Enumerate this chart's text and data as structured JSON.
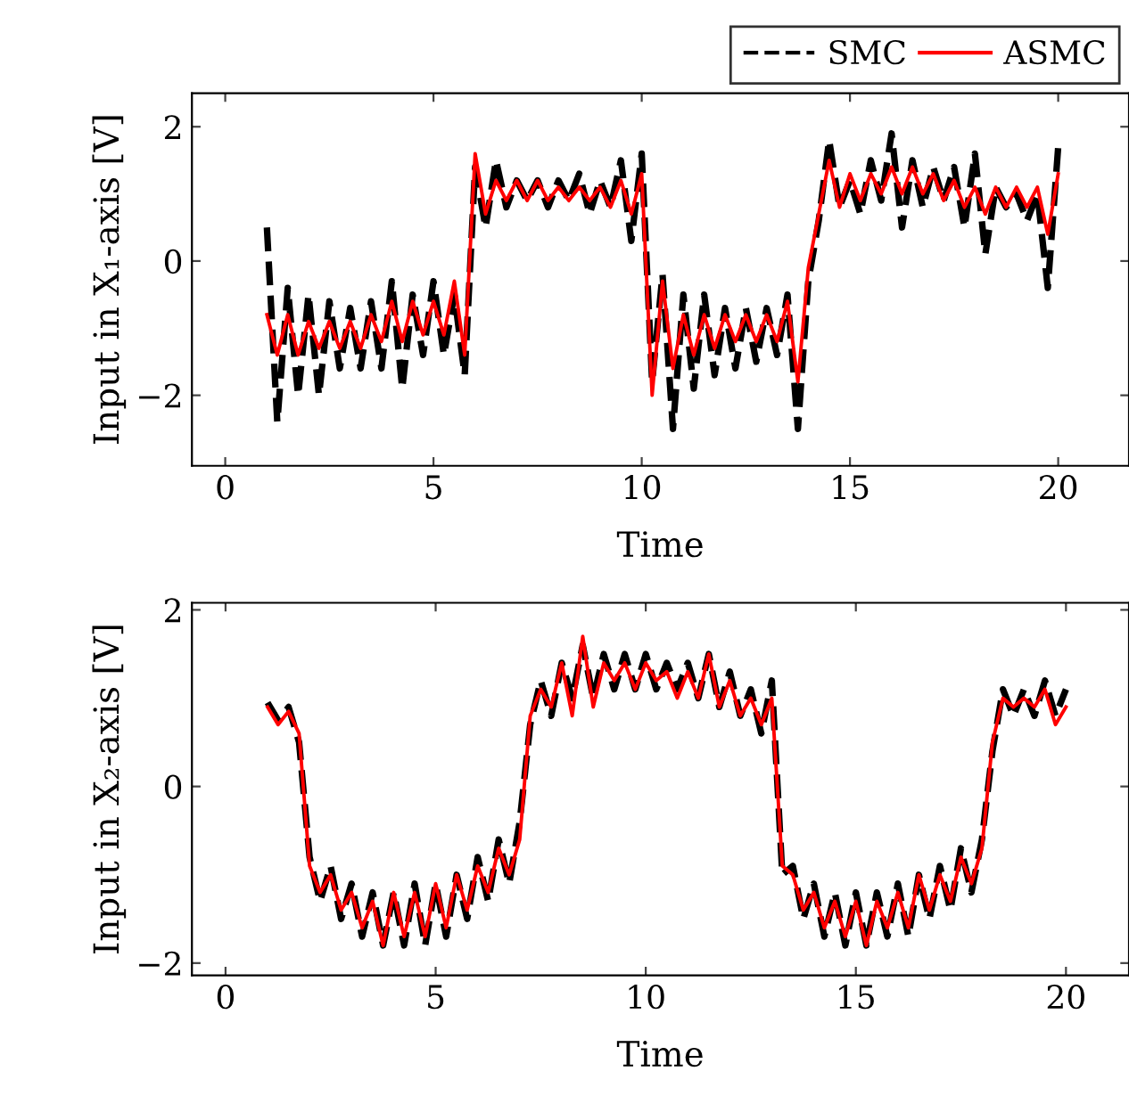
{
  "chart_data": [
    {
      "type": "line",
      "xlabel": "Time",
      "ylabel": "Input in X₁-axis [V]",
      "xlim": [
        -0.8,
        21.7
      ],
      "ylim": [
        -3.05,
        2.5
      ],
      "xticks": [
        0,
        5,
        10,
        15,
        20
      ],
      "yticks": [
        {
          "value": -2,
          "label": "−2"
        },
        0,
        2
      ],
      "legend": "top right",
      "grid": false,
      "x": [
        1.0,
        1.25,
        1.5,
        1.75,
        2.0,
        2.25,
        2.5,
        2.75,
        3.0,
        3.25,
        3.5,
        3.75,
        4.0,
        4.25,
        4.5,
        4.75,
        5.0,
        5.25,
        5.5,
        5.75,
        6.0,
        6.25,
        6.5,
        6.75,
        7.0,
        7.25,
        7.5,
        7.75,
        8.0,
        8.25,
        8.5,
        8.75,
        9.0,
        9.25,
        9.5,
        9.75,
        10.0,
        10.25,
        10.5,
        10.75,
        11.0,
        11.25,
        11.5,
        11.75,
        12.0,
        12.25,
        12.5,
        12.75,
        13.0,
        13.25,
        13.5,
        13.75,
        14.0,
        14.25,
        14.5,
        14.75,
        15.0,
        15.25,
        15.5,
        15.75,
        16.0,
        16.25,
        16.5,
        16.75,
        17.0,
        17.25,
        17.5,
        17.75,
        18.0,
        18.25,
        18.5,
        18.75,
        19.0,
        19.25,
        19.5,
        19.75,
        20.0
      ],
      "series": [
        {
          "name": "SMC",
          "color": "#000000",
          "line_style": "dashed",
          "values": [
            0.5,
            -2.4,
            -0.4,
            -2.0,
            -0.5,
            -2.0,
            -0.6,
            -1.6,
            -0.7,
            -1.6,
            -0.6,
            -1.6,
            -0.3,
            -1.9,
            -0.5,
            -1.4,
            -0.3,
            -1.4,
            -0.5,
            -1.7,
            1.4,
            0.5,
            1.5,
            0.8,
            1.2,
            0.9,
            1.2,
            0.8,
            1.2,
            0.9,
            1.3,
            0.7,
            1.2,
            0.8,
            1.5,
            0.3,
            1.6,
            -1.8,
            -0.2,
            -2.5,
            -0.5,
            -1.9,
            -0.5,
            -1.7,
            -0.7,
            -1.6,
            -0.7,
            -1.5,
            -0.7,
            -1.4,
            -0.5,
            -2.5,
            -0.3,
            0.6,
            1.8,
            0.8,
            1.2,
            0.7,
            1.5,
            0.9,
            1.9,
            0.5,
            1.5,
            0.8,
            1.4,
            0.9,
            1.4,
            0.5,
            1.6,
            0.1,
            1.1,
            0.8,
            1.0,
            0.6,
            1.0,
            -0.4,
            1.7
          ]
        },
        {
          "name": "ASMC",
          "color": "#ff0000",
          "line_style": "solid",
          "values": [
            -0.8,
            -1.4,
            -0.8,
            -1.4,
            -0.9,
            -1.3,
            -0.9,
            -1.3,
            -0.9,
            -1.3,
            -0.8,
            -1.2,
            -0.6,
            -1.2,
            -0.6,
            -1.1,
            -0.6,
            -1.1,
            -0.3,
            -1.4,
            1.6,
            0.7,
            1.2,
            0.9,
            1.2,
            0.9,
            1.2,
            0.9,
            1.1,
            0.9,
            1.1,
            0.9,
            1.1,
            0.8,
            1.2,
            0.7,
            1.3,
            -2.0,
            -0.3,
            -1.6,
            -0.8,
            -1.4,
            -0.8,
            -1.3,
            -0.8,
            -1.2,
            -0.8,
            -1.2,
            -0.8,
            -1.2,
            -0.6,
            -1.8,
            -0.1,
            0.7,
            1.5,
            0.8,
            1.3,
            0.9,
            1.3,
            1.0,
            1.4,
            1.0,
            1.4,
            1.0,
            1.3,
            0.9,
            1.2,
            0.8,
            1.1,
            0.7,
            1.1,
            0.8,
            1.1,
            0.8,
            1.1,
            0.4,
            1.3
          ]
        }
      ]
    },
    {
      "type": "line",
      "xlabel": "Time",
      "ylabel": "Input in X₂-axis [V]",
      "xlim": [
        -0.8,
        21.5
      ],
      "ylim": [
        -2.14,
        2.08
      ],
      "xticks": [
        0,
        5,
        10,
        15,
        20
      ],
      "yticks": [
        {
          "value": -2,
          "label": "−2"
        },
        0,
        2
      ],
      "grid": false,
      "x": [
        1.0,
        1.25,
        1.5,
        1.75,
        2.0,
        2.25,
        2.5,
        2.75,
        3.0,
        3.25,
        3.5,
        3.75,
        4.0,
        4.25,
        4.5,
        4.75,
        5.0,
        5.25,
        5.5,
        5.75,
        6.0,
        6.25,
        6.5,
        6.75,
        7.0,
        7.25,
        7.5,
        7.75,
        8.0,
        8.25,
        8.5,
        8.75,
        9.0,
        9.25,
        9.5,
        9.75,
        10.0,
        10.25,
        10.5,
        10.75,
        11.0,
        11.25,
        11.5,
        11.75,
        12.0,
        12.25,
        12.5,
        12.75,
        13.0,
        13.25,
        13.5,
        13.75,
        14.0,
        14.25,
        14.5,
        14.75,
        15.0,
        15.25,
        15.5,
        15.75,
        16.0,
        16.25,
        16.5,
        16.75,
        17.0,
        17.25,
        17.5,
        17.75,
        18.0,
        18.25,
        18.5,
        18.75,
        19.0,
        19.25,
        19.5,
        19.75,
        20.0
      ],
      "series": [
        {
          "color": "#000000",
          "line_style": "dashed",
          "values": [
            0.95,
            0.75,
            0.9,
            0.5,
            -0.8,
            -1.3,
            -0.9,
            -1.5,
            -1.1,
            -1.7,
            -1.2,
            -1.8,
            -1.2,
            -1.8,
            -1.1,
            -1.8,
            -1.1,
            -1.7,
            -1.0,
            -1.5,
            -0.8,
            -1.3,
            -0.6,
            -1.1,
            -0.4,
            0.7,
            1.2,
            0.8,
            1.4,
            1.0,
            1.6,
            1.0,
            1.5,
            1.1,
            1.5,
            1.1,
            1.5,
            1.1,
            1.4,
            1.1,
            1.4,
            1.0,
            1.5,
            0.9,
            1.3,
            0.8,
            1.1,
            0.6,
            1.2,
            -1.0,
            -0.9,
            -1.5,
            -1.1,
            -1.7,
            -1.2,
            -1.8,
            -1.2,
            -1.8,
            -1.2,
            -1.7,
            -1.1,
            -1.7,
            -1.0,
            -1.5,
            -0.9,
            -1.4,
            -0.7,
            -1.2,
            -0.6,
            0.4,
            1.1,
            0.8,
            1.1,
            0.8,
            1.2,
            0.8,
            1.1
          ]
        },
        {
          "color": "#ff0000",
          "line_style": "solid",
          "values": [
            0.9,
            0.7,
            0.85,
            0.6,
            -0.9,
            -1.2,
            -1.0,
            -1.4,
            -1.2,
            -1.6,
            -1.3,
            -1.8,
            -1.2,
            -1.7,
            -1.2,
            -1.7,
            -1.1,
            -1.6,
            -1.0,
            -1.4,
            -0.9,
            -1.2,
            -0.7,
            -1.0,
            -0.6,
            0.8,
            1.1,
            0.9,
            1.4,
            0.8,
            1.7,
            0.9,
            1.4,
            1.2,
            1.4,
            1.1,
            1.4,
            1.2,
            1.3,
            1.0,
            1.3,
            1.0,
            1.5,
            0.9,
            1.2,
            0.8,
            1.0,
            0.7,
            1.0,
            -0.9,
            -1.0,
            -1.4,
            -1.2,
            -1.6,
            -1.3,
            -1.7,
            -1.3,
            -1.8,
            -1.3,
            -1.6,
            -1.2,
            -1.6,
            -1.0,
            -1.4,
            -1.0,
            -1.3,
            -0.8,
            -1.1,
            -0.7,
            0.5,
            1.0,
            0.9,
            1.0,
            0.9,
            1.1,
            0.7,
            0.9
          ]
        }
      ]
    }
  ]
}
